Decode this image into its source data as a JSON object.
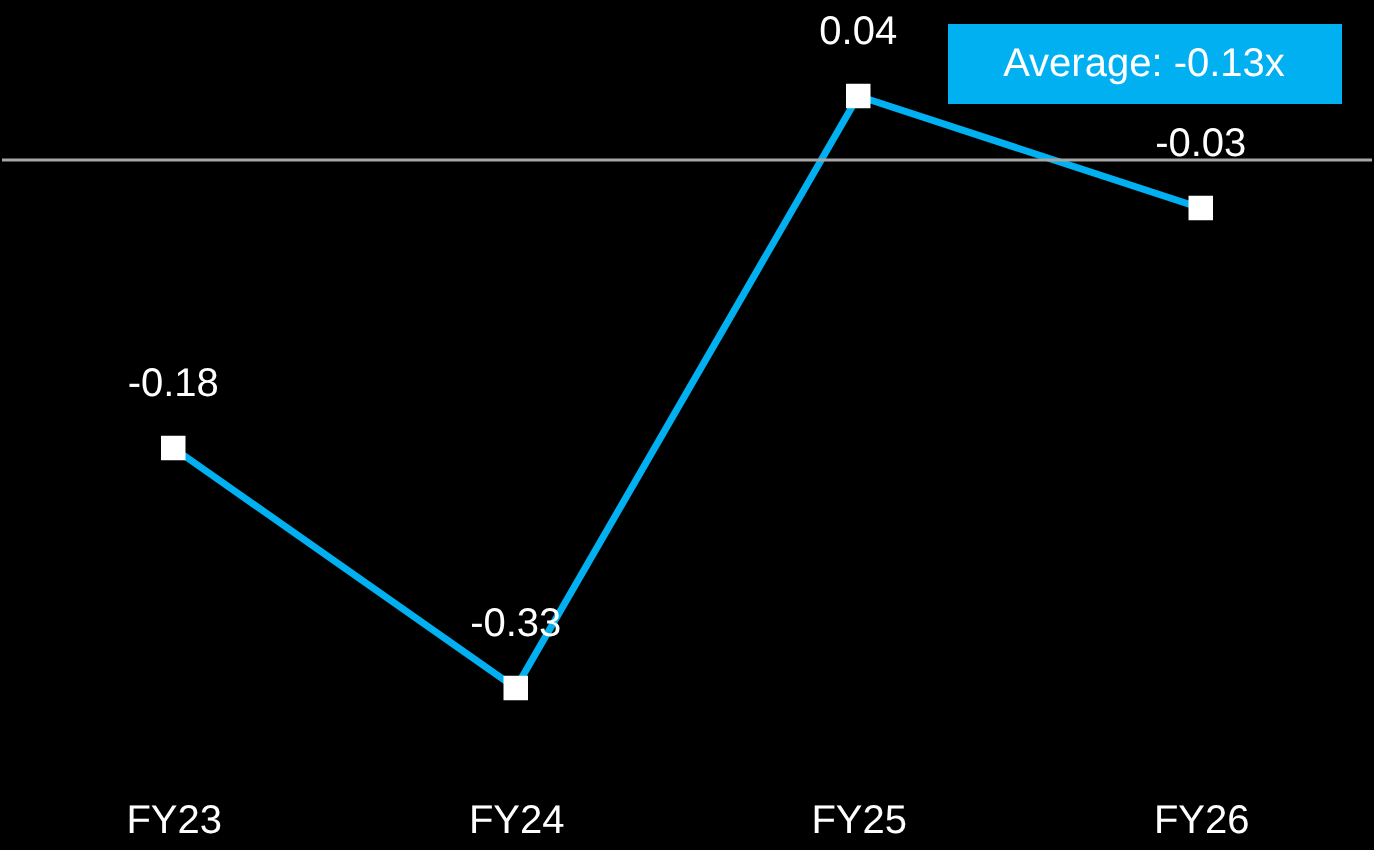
{
  "chart_data": {
    "type": "line",
    "categories": [
      "FY23",
      "FY24",
      "FY25",
      "FY26"
    ],
    "series": [
      {
        "color": "#00b0f0",
        "values": [
          -0.18,
          -0.33,
          0.04,
          -0.03
        ]
      }
    ],
    "data_labels": true,
    "marker": "square",
    "line_style": "solid",
    "tick_labels": "x",
    "grid": false,
    "ref_lines": [
      {
        "axis": "y",
        "value": 0,
        "color": "#a6a6a6"
      }
    ],
    "annotations": [
      "Average: -0.13x"
    ]
  }
}
